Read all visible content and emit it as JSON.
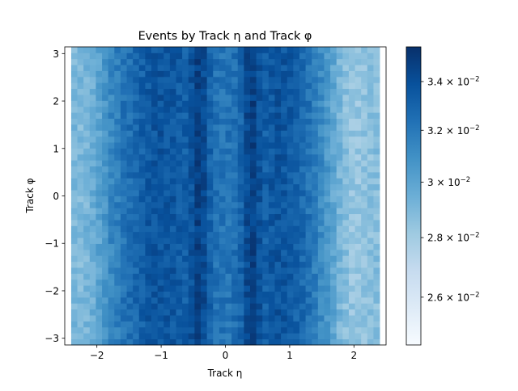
{
  "chart_data": {
    "type": "heatmap",
    "title": "Events by Track η and Track φ",
    "xlabel": "Track η",
    "ylabel": "Track φ",
    "xlim": [
      -2.5,
      2.5
    ],
    "ylim": [
      -3.1416,
      3.1416
    ],
    "x_ticks": [
      {
        "value": -2,
        "label": "−2"
      },
      {
        "value": -1,
        "label": "−1"
      },
      {
        "value": 0,
        "label": "0"
      },
      {
        "value": 1,
        "label": "1"
      },
      {
        "value": 2,
        "label": "2"
      }
    ],
    "y_ticks": [
      {
        "value": -3,
        "label": "−3"
      },
      {
        "value": -2,
        "label": "−2"
      },
      {
        "value": -1,
        "label": "−1"
      },
      {
        "value": 0,
        "label": "0"
      },
      {
        "value": 1,
        "label": "1"
      },
      {
        "value": 2,
        "label": "2"
      },
      {
        "value": 3,
        "label": "3"
      }
    ],
    "x_bins": 50,
    "y_bins": 50,
    "x_data_range": [
      -2.4,
      2.4
    ],
    "eta_profile": [
      {
        "eta": -2.4,
        "value": 0.029
      },
      {
        "eta": -2.2,
        "value": 0.029
      },
      {
        "eta": -2.0,
        "value": 0.0298
      },
      {
        "eta": -1.8,
        "value": 0.0312
      },
      {
        "eta": -1.6,
        "value": 0.0322
      },
      {
        "eta": -1.4,
        "value": 0.0328
      },
      {
        "eta": -1.2,
        "value": 0.0335
      },
      {
        "eta": -1.0,
        "value": 0.0338
      },
      {
        "eta": -0.8,
        "value": 0.0336
      },
      {
        "eta": -0.6,
        "value": 0.0332
      },
      {
        "eta": -0.4,
        "value": 0.035
      },
      {
        "eta": -0.2,
        "value": 0.0325
      },
      {
        "eta": 0.0,
        "value": 0.0322
      },
      {
        "eta": 0.2,
        "value": 0.0325
      },
      {
        "eta": 0.4,
        "value": 0.035
      },
      {
        "eta": 0.6,
        "value": 0.0332
      },
      {
        "eta": 0.8,
        "value": 0.0338
      },
      {
        "eta": 1.0,
        "value": 0.0335
      },
      {
        "eta": 1.2,
        "value": 0.0328
      },
      {
        "eta": 1.4,
        "value": 0.0318
      },
      {
        "eta": 1.6,
        "value": 0.0305
      },
      {
        "eta": 1.8,
        "value": 0.029
      },
      {
        "eta": 2.0,
        "value": 0.0282
      },
      {
        "eta": 2.2,
        "value": 0.0285
      },
      {
        "eta": 2.4,
        "value": 0.0288
      }
    ],
    "colorbar": {
      "scale": "log",
      "colormap": "Blues",
      "range": [
        0.0245,
        0.0355
      ],
      "ticks": [
        {
          "value": 0.026,
          "mantissa": "2.6",
          "label": "2.6 × 10^−2"
        },
        {
          "value": 0.028,
          "mantissa": "2.8",
          "label": "2.8 × 10^−2"
        },
        {
          "value": 0.03,
          "mantissa": "3",
          "label": "3 × 10^−2"
        },
        {
          "value": 0.032,
          "mantissa": "3.2",
          "label": "3.2 × 10^−2"
        },
        {
          "value": 0.034,
          "mantissa": "3.4",
          "label": "3.4 × 10^−2"
        }
      ]
    },
    "grid": false,
    "legend": "none"
  }
}
